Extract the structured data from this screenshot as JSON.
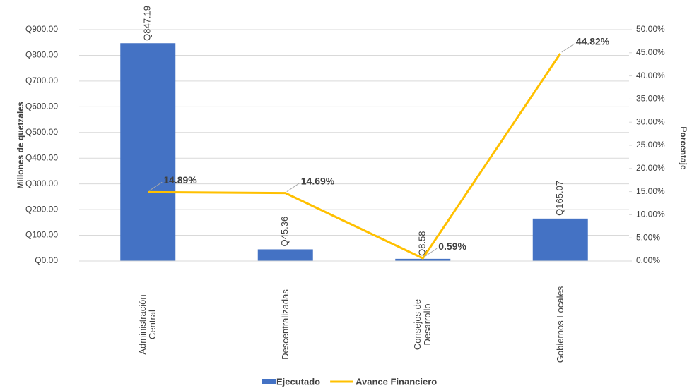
{
  "chart_data": {
    "type": "bar",
    "categories": [
      "Administración\nCentral",
      "Descentralizadas",
      "Consejos de\nDesarrollo",
      "Gobiernos Locales"
    ],
    "series": [
      {
        "name": "Ejecutado",
        "type": "bar",
        "color": "#4472c4",
        "values": [
          847.19,
          45.36,
          8.58,
          165.07
        ],
        "value_labels": [
          "Q847.19",
          "Q45.36",
          "Q8.58",
          "Q165.07"
        ]
      },
      {
        "name": "Avance Financiero",
        "type": "line",
        "axis": "y2",
        "color": "#ffc000",
        "values": [
          14.89,
          14.69,
          0.59,
          44.82
        ],
        "value_labels": [
          "14.89%",
          "14.69%",
          "0.59%",
          "44.82%"
        ]
      }
    ],
    "ylabel": "Millones de quetzales",
    "y2label": "Porcentaje",
    "ylim": [
      0,
      900
    ],
    "yticks": [
      {
        "value": 0,
        "label": "Q0.00"
      },
      {
        "value": 100,
        "label": "Q100.00"
      },
      {
        "value": 200,
        "label": "Q200.00"
      },
      {
        "value": 300,
        "label": "Q300.00"
      },
      {
        "value": 400,
        "label": "Q400.00"
      },
      {
        "value": 500,
        "label": "Q500.00"
      },
      {
        "value": 600,
        "label": "Q600.00"
      },
      {
        "value": 700,
        "label": "Q700.00"
      },
      {
        "value": 800,
        "label": "Q800.00"
      },
      {
        "value": 900,
        "label": "Q900.00"
      }
    ],
    "y2lim": [
      0,
      50
    ],
    "y2ticks": [
      {
        "value": 0,
        "label": "0.00%"
      },
      {
        "value": 5,
        "label": "5.00%"
      },
      {
        "value": 10,
        "label": "10.00%"
      },
      {
        "value": 15,
        "label": "15.00%"
      },
      {
        "value": 20,
        "label": "20.00%"
      },
      {
        "value": 25,
        "label": "25.00%"
      },
      {
        "value": 30,
        "label": "30.00%"
      },
      {
        "value": 35,
        "label": "35.00%"
      },
      {
        "value": 40,
        "label": "40.00%"
      },
      {
        "value": 45,
        "label": "45.00%"
      },
      {
        "value": 50,
        "label": "50.00%"
      }
    ],
    "grid": true,
    "legend": "bottom"
  }
}
